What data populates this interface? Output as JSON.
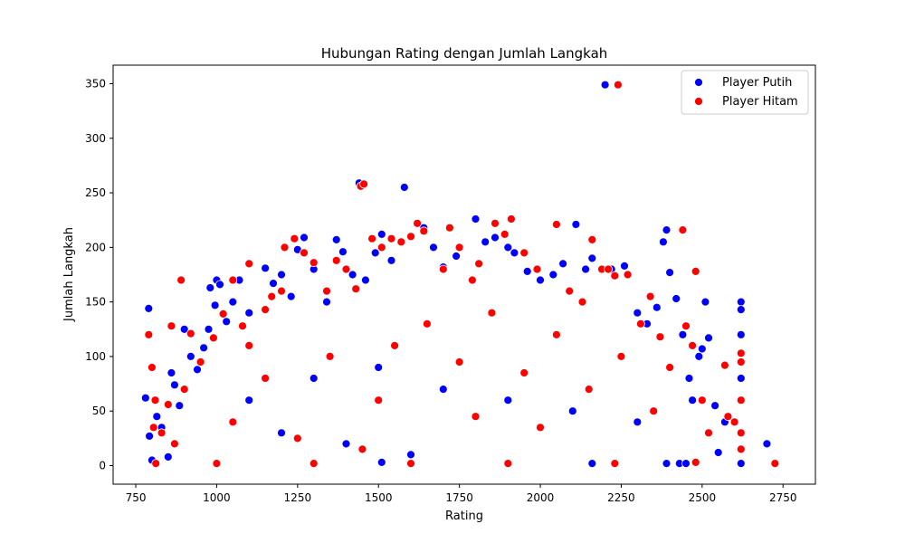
{
  "chart_data": {
    "type": "scatter",
    "title": "Hubungan Rating dengan Jumlah Langkah",
    "xlabel": "Rating",
    "ylabel": "Jumlah Langkah",
    "xlim": [
      680,
      2850
    ],
    "ylim": [
      -17,
      367
    ],
    "xticks": [
      750,
      1000,
      1250,
      1500,
      1750,
      2000,
      2250,
      2500,
      2750
    ],
    "yticks": [
      0,
      50,
      100,
      150,
      200,
      250,
      300,
      350
    ],
    "grid": false,
    "legend_position": "top-right",
    "series": [
      {
        "name": "Player Putih",
        "color": "#0000ff",
        "points": [
          [
            790,
            144
          ],
          [
            780,
            62
          ],
          [
            792,
            27
          ],
          [
            800,
            5
          ],
          [
            815,
            45
          ],
          [
            830,
            35
          ],
          [
            850,
            8
          ],
          [
            860,
            85
          ],
          [
            870,
            74
          ],
          [
            885,
            55
          ],
          [
            900,
            125
          ],
          [
            920,
            100
          ],
          [
            940,
            88
          ],
          [
            960,
            108
          ],
          [
            975,
            125
          ],
          [
            980,
            163
          ],
          [
            995,
            147
          ],
          [
            1000,
            170
          ],
          [
            1010,
            166
          ],
          [
            1030,
            132
          ],
          [
            1050,
            150
          ],
          [
            1070,
            170
          ],
          [
            1100,
            140
          ],
          [
            1150,
            181
          ],
          [
            1175,
            167
          ],
          [
            1200,
            175
          ],
          [
            1230,
            155
          ],
          [
            1250,
            198
          ],
          [
            1270,
            209
          ],
          [
            1300,
            180
          ],
          [
            1340,
            150
          ],
          [
            1370,
            207
          ],
          [
            1390,
            196
          ],
          [
            1420,
            175
          ],
          [
            1440,
            259
          ],
          [
            1460,
            170
          ],
          [
            1490,
            195
          ],
          [
            1510,
            212
          ],
          [
            1540,
            188
          ],
          [
            1580,
            255
          ],
          [
            1600,
            210
          ],
          [
            1640,
            218
          ],
          [
            1670,
            200
          ],
          [
            1700,
            182
          ],
          [
            1740,
            192
          ],
          [
            1800,
            226
          ],
          [
            1830,
            205
          ],
          [
            1860,
            209
          ],
          [
            1900,
            200
          ],
          [
            1920,
            195
          ],
          [
            1960,
            178
          ],
          [
            2000,
            170
          ],
          [
            2040,
            175
          ],
          [
            2070,
            185
          ],
          [
            2110,
            221
          ],
          [
            2140,
            180
          ],
          [
            2160,
            190
          ],
          [
            2200,
            349
          ],
          [
            2220,
            180
          ],
          [
            2260,
            183
          ],
          [
            2300,
            140
          ],
          [
            2330,
            130
          ],
          [
            2360,
            145
          ],
          [
            2380,
            205
          ],
          [
            2390,
            216
          ],
          [
            2400,
            177
          ],
          [
            2420,
            153
          ],
          [
            2440,
            120
          ],
          [
            2460,
            80
          ],
          [
            2470,
            60
          ],
          [
            2490,
            100
          ],
          [
            2500,
            107
          ],
          [
            2510,
            150
          ],
          [
            2520,
            117
          ],
          [
            2540,
            55
          ],
          [
            2550,
            12
          ],
          [
            2570,
            40
          ],
          [
            2600,
            40
          ],
          [
            2620,
            150
          ],
          [
            2620,
            143
          ],
          [
            2620,
            120
          ],
          [
            2620,
            80
          ],
          [
            2620,
            30
          ],
          [
            2620,
            2
          ],
          [
            2700,
            20
          ],
          [
            2430,
            2
          ],
          [
            2450,
            2
          ],
          [
            2390,
            2
          ],
          [
            2160,
            2
          ],
          [
            1510,
            3
          ],
          [
            1100,
            60
          ],
          [
            1300,
            80
          ],
          [
            1500,
            90
          ],
          [
            1700,
            70
          ],
          [
            1900,
            60
          ],
          [
            2100,
            50
          ],
          [
            2300,
            40
          ],
          [
            1200,
            30
          ],
          [
            1400,
            20
          ],
          [
            1600,
            10
          ]
        ]
      },
      {
        "name": "Player Hitam",
        "color": "#ff0000",
        "points": [
          [
            790,
            120
          ],
          [
            800,
            90
          ],
          [
            810,
            60
          ],
          [
            805,
            35
          ],
          [
            812,
            2
          ],
          [
            830,
            30
          ],
          [
            850,
            56
          ],
          [
            860,
            128
          ],
          [
            870,
            20
          ],
          [
            890,
            170
          ],
          [
            920,
            121
          ],
          [
            950,
            95
          ],
          [
            990,
            117
          ],
          [
            1020,
            139
          ],
          [
            1050,
            170
          ],
          [
            1080,
            128
          ],
          [
            1100,
            185
          ],
          [
            1150,
            143
          ],
          [
            1170,
            155
          ],
          [
            1210,
            200
          ],
          [
            1240,
            208
          ],
          [
            1270,
            195
          ],
          [
            1300,
            186
          ],
          [
            1340,
            160
          ],
          [
            1370,
            188
          ],
          [
            1400,
            180
          ],
          [
            1430,
            162
          ],
          [
            1445,
            256
          ],
          [
            1455,
            258
          ],
          [
            1480,
            208
          ],
          [
            1510,
            200
          ],
          [
            1540,
            208
          ],
          [
            1570,
            205
          ],
          [
            1600,
            210
          ],
          [
            1620,
            222
          ],
          [
            1640,
            215
          ],
          [
            1700,
            180
          ],
          [
            1720,
            218
          ],
          [
            1750,
            200
          ],
          [
            1790,
            170
          ],
          [
            1810,
            185
          ],
          [
            1860,
            222
          ],
          [
            1890,
            212
          ],
          [
            1910,
            226
          ],
          [
            1950,
            195
          ],
          [
            1990,
            180
          ],
          [
            2050,
            221
          ],
          [
            2090,
            160
          ],
          [
            2130,
            150
          ],
          [
            2160,
            207
          ],
          [
            2190,
            180
          ],
          [
            2210,
            180
          ],
          [
            2230,
            174
          ],
          [
            2240,
            349
          ],
          [
            2270,
            175
          ],
          [
            2310,
            130
          ],
          [
            2340,
            155
          ],
          [
            2370,
            118
          ],
          [
            2400,
            90
          ],
          [
            2440,
            216
          ],
          [
            2450,
            128
          ],
          [
            2470,
            110
          ],
          [
            2480,
            178
          ],
          [
            2500,
            60
          ],
          [
            2520,
            30
          ],
          [
            2570,
            92
          ],
          [
            2580,
            45
          ],
          [
            2600,
            40
          ],
          [
            2620,
            103
          ],
          [
            2620,
            95
          ],
          [
            2620,
            60
          ],
          [
            2620,
            30
          ],
          [
            2620,
            15
          ],
          [
            2725,
            2
          ],
          [
            2480,
            3
          ],
          [
            2230,
            2
          ],
          [
            1900,
            2
          ],
          [
            1600,
            2
          ],
          [
            1300,
            2
          ],
          [
            1000,
            2
          ],
          [
            1150,
            80
          ],
          [
            1350,
            100
          ],
          [
            1550,
            110
          ],
          [
            1750,
            95
          ],
          [
            1950,
            85
          ],
          [
            2150,
            70
          ],
          [
            2350,
            50
          ],
          [
            1050,
            40
          ],
          [
            1250,
            25
          ],
          [
            1450,
            15
          ],
          [
            1650,
            130
          ],
          [
            1850,
            140
          ],
          [
            2050,
            120
          ],
          [
            1100,
            110
          ],
          [
            900,
            70
          ],
          [
            2250,
            100
          ],
          [
            1500,
            60
          ],
          [
            1800,
            45
          ],
          [
            2000,
            35
          ],
          [
            1200,
            160
          ]
        ]
      }
    ]
  }
}
